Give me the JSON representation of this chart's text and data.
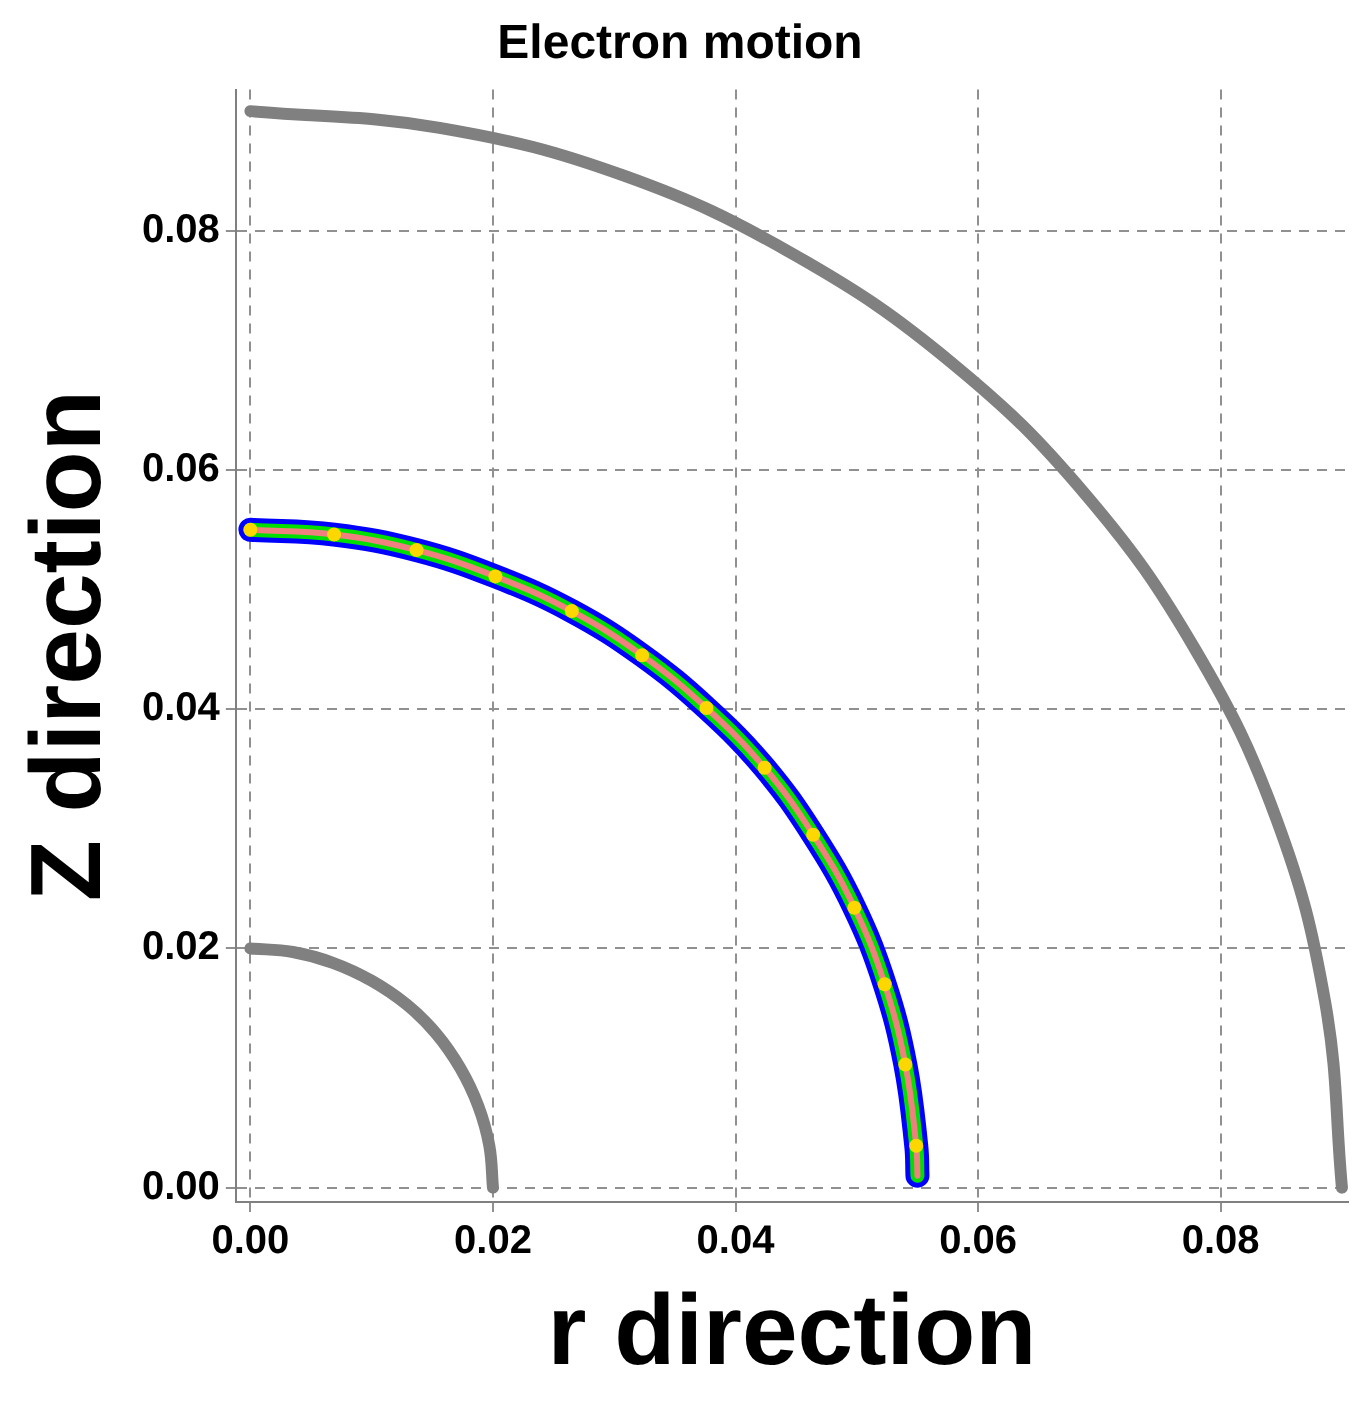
{
  "chart_data": {
    "type": "line",
    "title": "Electron motion",
    "xlabel": "r direction",
    "ylabel": "Z direction",
    "xlim": [
      -0.0012,
      0.0905
    ],
    "ylim": [
      -0.0012,
      0.0918
    ],
    "xticks": [
      {
        "value": 0,
        "label": "0.00"
      },
      {
        "value": 0.02,
        "label": "0.02"
      },
      {
        "value": 0.04,
        "label": "0.04"
      },
      {
        "value": 0.06,
        "label": "0.06"
      },
      {
        "value": 0.08,
        "label": "0.08"
      }
    ],
    "yticks": [
      {
        "value": 0,
        "label": "0.00"
      },
      {
        "value": 0.02,
        "label": "0.02"
      },
      {
        "value": 0.04,
        "label": "0.04"
      },
      {
        "value": 0.06,
        "label": "0.06"
      },
      {
        "value": 0.08,
        "label": "0.08"
      }
    ],
    "grid": true,
    "legend": false,
    "series": [
      {
        "color": "#808080",
        "marker": "none",
        "x": [
          0,
          0.0035,
          0.0068,
          0.01,
          0.0129,
          0.0153,
          0.0173,
          0.0188,
          0.0197,
          0.02
        ],
        "values": [
          0.02,
          0.0197,
          0.0188,
          0.0173,
          0.0153,
          0.0129,
          0.01,
          0.0068,
          0.0035,
          0
        ]
      },
      {
        "color": "#808080",
        "marker": "none",
        "x": [
          0,
          0.0156,
          0.0308,
          0.045,
          0.0579,
          0.0689,
          0.0779,
          0.0846,
          0.0886,
          0.09
        ],
        "values": [
          0.09,
          0.0886,
          0.0846,
          0.0779,
          0.0689,
          0.0579,
          0.045,
          0.0308,
          0.0156,
          0
        ]
      },
      {
        "color": "#0000ff",
        "marker": "none",
        "x": [
          0,
          0.0069,
          0.0137,
          0.0202,
          0.0265,
          0.0323,
          0.0376,
          0.0424,
          0.0464,
          0.0498,
          0.0523,
          0.054,
          0.0549,
          0.055
        ],
        "values": [
          0.055,
          0.0546,
          0.0533,
          0.0511,
          0.0482,
          0.0445,
          0.0401,
          0.0351,
          0.0295,
          0.0234,
          0.017,
          0.0103,
          0.0035,
          0.001
        ]
      },
      {
        "color": "#00e000",
        "marker": "none",
        "x": [
          0,
          0.0069,
          0.0137,
          0.0202,
          0.0265,
          0.0323,
          0.0376,
          0.0424,
          0.0464,
          0.0498,
          0.0523,
          0.054,
          0.0549,
          0.055
        ],
        "values": [
          0.055,
          0.0546,
          0.0533,
          0.0511,
          0.0482,
          0.0445,
          0.0401,
          0.0351,
          0.0295,
          0.0234,
          0.017,
          0.0103,
          0.0035,
          0.001
        ]
      },
      {
        "color": "#f08080",
        "marker": "none",
        "x": [
          0,
          0.0069,
          0.0137,
          0.0202,
          0.0265,
          0.0323,
          0.0376,
          0.0424,
          0.0464,
          0.0498,
          0.0523,
          0.054,
          0.0549,
          0.055
        ],
        "values": [
          0.055,
          0.0546,
          0.0533,
          0.0511,
          0.0482,
          0.0445,
          0.0401,
          0.0351,
          0.0295,
          0.0234,
          0.017,
          0.0103,
          0.0035,
          0.001
        ]
      },
      {
        "type": "scatter",
        "color": "#ffd700",
        "marker": "circle",
        "x": [
          0,
          0.0069,
          0.0137,
          0.0202,
          0.0265,
          0.0323,
          0.0376,
          0.0424,
          0.0464,
          0.0498,
          0.0523,
          0.054,
          0.0549
        ],
        "values": [
          0.055,
          0.0546,
          0.0533,
          0.0511,
          0.0482,
          0.0445,
          0.0401,
          0.0351,
          0.0295,
          0.0234,
          0.017,
          0.0103,
          0.0035
        ]
      }
    ]
  }
}
